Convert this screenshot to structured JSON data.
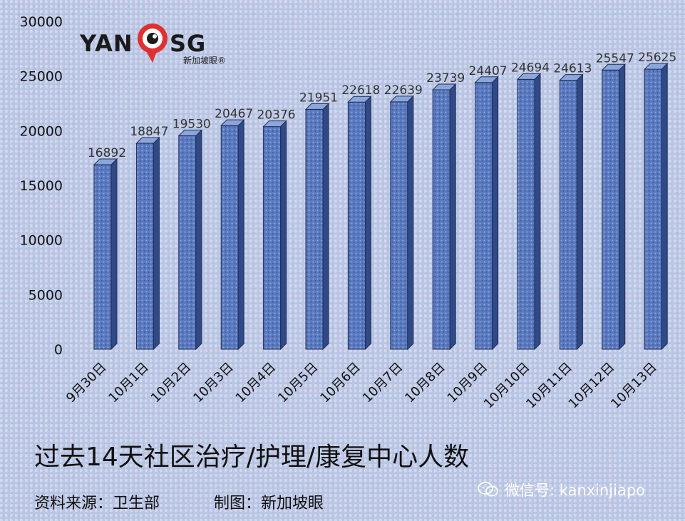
{
  "brand": {
    "logo_left": "YAN",
    "logo_right": "SG",
    "logo_sub": "新加坡眼®"
  },
  "footer": {
    "title": "过去14天社区治疗/护理/康复中心人数",
    "source": "资料来源：卫生部",
    "credit": "制图：新加坡眼",
    "wechat": "微信号: kanxinjiapo"
  },
  "colors": {
    "bar_front": "#5a79bf",
    "bar_side": "#2f4a86",
    "bar_top": "#8ba6dc",
    "bar_outline": "#1f2f55"
  },
  "chart_data": {
    "type": "bar",
    "categories": [
      "9月30日",
      "10月1日",
      "10月2日",
      "10月3日",
      "10月4日",
      "10月5日",
      "10月6日",
      "10月7日",
      "10月8日",
      "10月9日",
      "10月10日",
      "10月11日",
      "10月12日",
      "10月13日"
    ],
    "values": [
      16892,
      18847,
      19530,
      20467,
      20376,
      21951,
      22618,
      22639,
      23739,
      24407,
      24694,
      24613,
      25547,
      25625
    ],
    "yticks": [
      0,
      5000,
      10000,
      15000,
      20000,
      25000,
      30000
    ],
    "ylim": [
      0,
      30000
    ],
    "grid": false,
    "legend": "none",
    "three_d": true
  }
}
